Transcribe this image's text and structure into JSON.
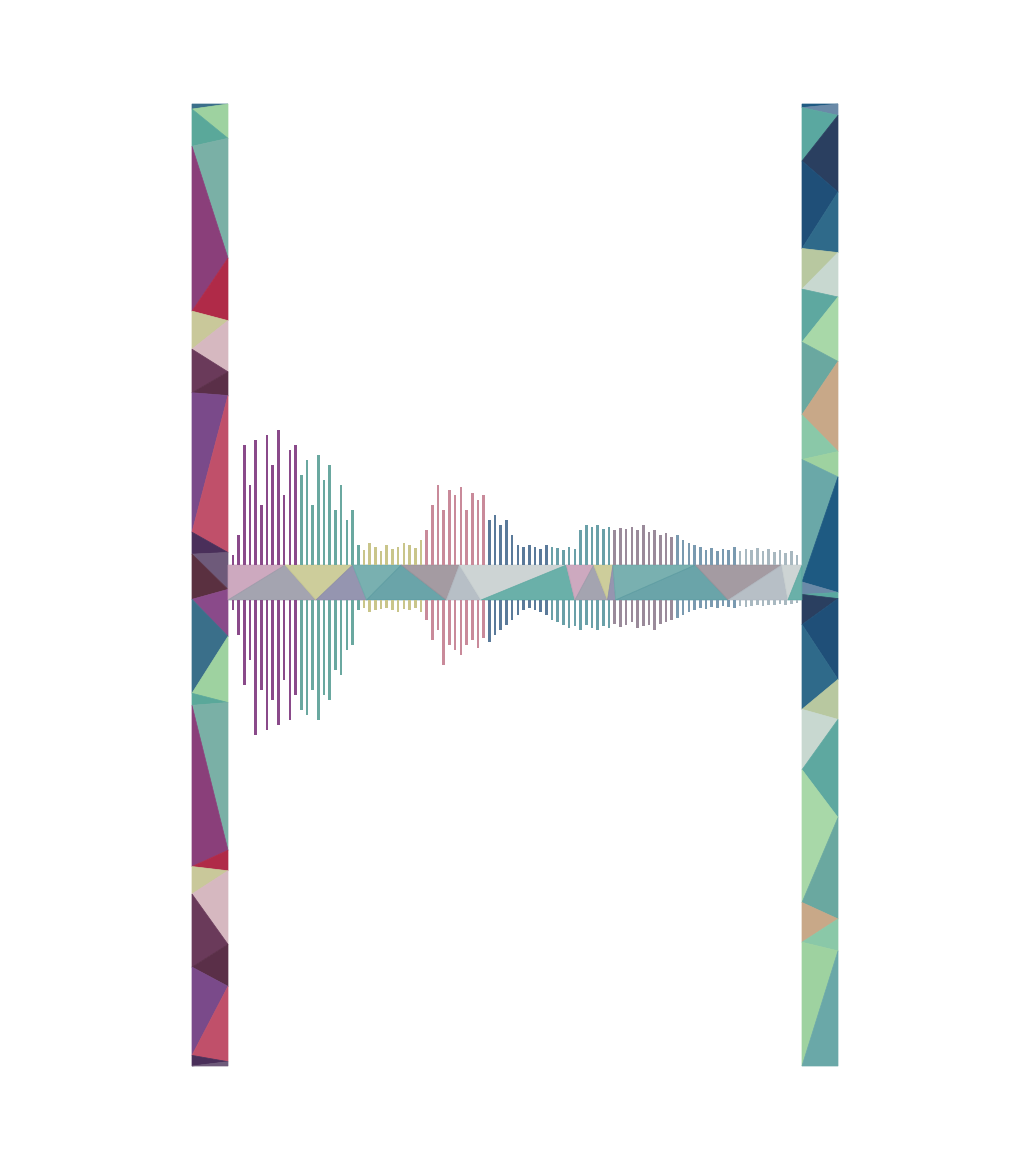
{
  "chart_data": [
    {
      "type": "bar",
      "tick_labels": false,
      "ylim": [
        0,
        140
      ],
      "values": [
        10,
        30,
        120,
        80,
        125,
        60,
        130,
        100,
        135,
        70,
        115,
        120,
        90,
        105,
        60,
        110,
        85,
        100,
        55,
        80,
        45,
        55,
        20,
        15,
        22,
        18,
        14,
        20,
        16,
        18,
        22,
        20,
        17,
        25,
        35,
        60,
        80,
        55,
        75,
        70,
        78,
        55,
        72,
        65,
        70,
        45,
        50,
        40,
        45,
        30,
        20,
        18,
        20,
        18,
        16,
        20,
        18,
        17,
        15,
        18,
        16,
        35,
        40,
        38,
        40,
        36,
        38,
        35,
        37,
        36,
        38,
        35,
        40,
        33,
        35,
        30,
        32,
        28,
        30,
        25,
        22,
        20,
        18,
        15,
        17,
        14,
        16,
        15,
        18,
        14,
        16,
        15,
        17,
        14,
        16,
        13,
        15,
        12,
        14,
        10
      ]
    },
    {
      "type": "bar",
      "tick_labels": false,
      "ylim": [
        140,
        0
      ],
      "values": [
        10,
        35,
        85,
        60,
        135,
        90,
        130,
        100,
        125,
        80,
        120,
        95,
        110,
        115,
        90,
        120,
        95,
        100,
        70,
        75,
        50,
        45,
        10,
        8,
        12,
        10,
        9,
        8,
        10,
        12,
        9,
        10,
        8,
        12,
        20,
        40,
        30,
        65,
        45,
        50,
        55,
        45,
        40,
        48,
        38,
        42,
        35,
        30,
        25,
        20,
        15,
        10,
        8,
        10,
        12,
        15,
        20,
        22,
        25,
        28,
        26,
        30,
        25,
        28,
        30,
        26,
        28,
        24,
        27,
        25,
        22,
        28,
        26,
        25,
        30,
        24,
        22,
        20,
        18,
        15,
        12,
        10,
        8,
        9,
        7,
        8,
        6,
        7,
        8,
        6,
        7,
        6,
        5,
        6,
        5,
        5,
        4,
        5,
        4,
        3
      ]
    }
  ]
}
